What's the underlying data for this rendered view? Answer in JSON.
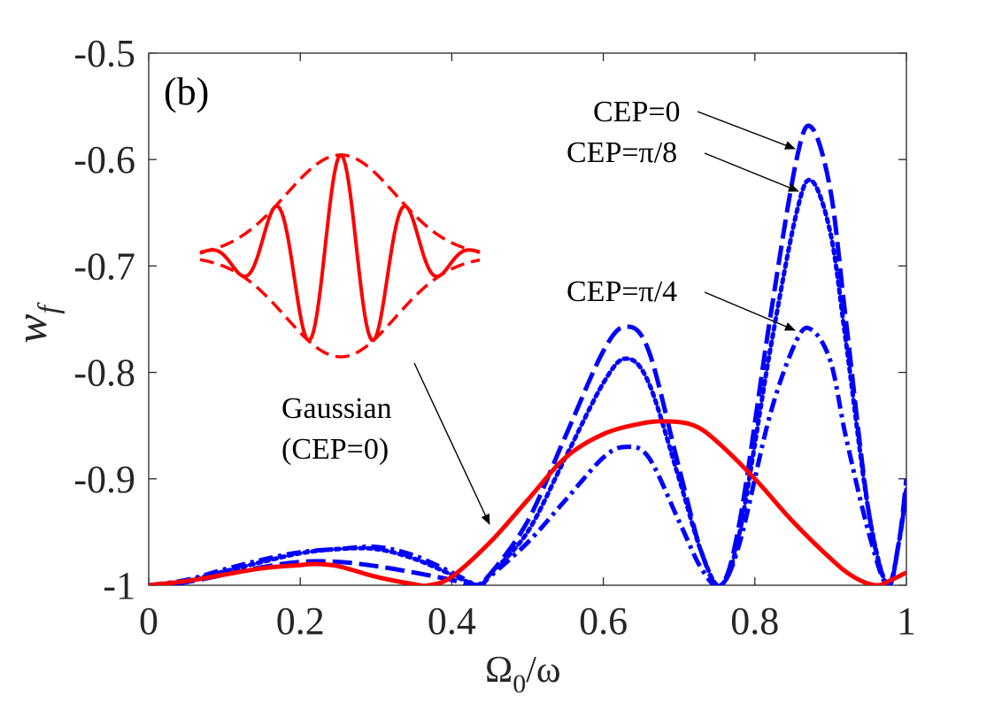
{
  "chart_data": {
    "type": "line",
    "panel_label": "(b)",
    "xlabel": {
      "main": "Ω",
      "sub": "0",
      "rest": "/ω"
    },
    "ylabel": {
      "main": "w",
      "sub": "f"
    },
    "xlim": [
      0,
      1
    ],
    "ylim": [
      -1,
      -0.5
    ],
    "xticks": [
      0,
      0.2,
      0.4,
      0.6,
      0.8,
      1
    ],
    "xtick_labels": [
      "0",
      "0.2",
      "0.4",
      "0.6",
      "0.8",
      "1"
    ],
    "yticks": [
      -1,
      -0.9,
      -0.8,
      -0.7,
      -0.6,
      -0.5
    ],
    "ytick_labels": [
      "-1",
      "-0.9",
      "-0.8",
      "-0.7",
      "-0.6",
      "-0.5"
    ],
    "series": [
      {
        "name": "CEP=0",
        "style": "dashed",
        "color": "#0000ff",
        "x": [
          0,
          0.05,
          0.1,
          0.15,
          0.2,
          0.25,
          0.3,
          0.35,
          0.4,
          0.43,
          0.45,
          0.5,
          0.55,
          0.6,
          0.63,
          0.66,
          0.7,
          0.73,
          0.755,
          0.78,
          0.82,
          0.855,
          0.875,
          0.9,
          0.92,
          0.95,
          0.975,
          0.99,
          1.0
        ],
        "y": [
          -1.0,
          -0.997,
          -0.99,
          -0.983,
          -0.978,
          -0.978,
          -0.982,
          -0.988,
          -0.995,
          -1.0,
          -0.99,
          -0.94,
          -0.86,
          -0.78,
          -0.757,
          -0.78,
          -0.89,
          -0.97,
          -1.0,
          -0.94,
          -0.75,
          -0.6,
          -0.57,
          -0.63,
          -0.75,
          -0.93,
          -1.0,
          -0.96,
          -0.9
        ]
      },
      {
        "name": "CEP=π/8",
        "style": "dotted",
        "color": "#0000ff",
        "x": [
          0,
          0.05,
          0.1,
          0.15,
          0.2,
          0.25,
          0.3,
          0.35,
          0.4,
          0.435,
          0.45,
          0.5,
          0.55,
          0.6,
          0.63,
          0.66,
          0.7,
          0.73,
          0.755,
          0.78,
          0.82,
          0.855,
          0.875,
          0.9,
          0.92,
          0.95,
          0.975,
          0.99,
          1.0
        ],
        "y": [
          -1.0,
          -0.996,
          -0.987,
          -0.978,
          -0.97,
          -0.966,
          -0.966,
          -0.975,
          -0.99,
          -1.0,
          -0.99,
          -0.95,
          -0.88,
          -0.81,
          -0.787,
          -0.81,
          -0.9,
          -0.97,
          -1.0,
          -0.95,
          -0.78,
          -0.65,
          -0.62,
          -0.67,
          -0.77,
          -0.93,
          -1.0,
          -0.96,
          -0.91
        ]
      },
      {
        "name": "CEP=π/4",
        "style": "dashdot",
        "color": "#0000ff",
        "x": [
          0,
          0.05,
          0.1,
          0.15,
          0.2,
          0.25,
          0.3,
          0.35,
          0.4,
          0.435,
          0.45,
          0.5,
          0.55,
          0.6,
          0.63,
          0.66,
          0.7,
          0.73,
          0.755,
          0.78,
          0.82,
          0.855,
          0.875,
          0.9,
          0.92,
          0.95,
          0.975,
          0.99,
          1.0
        ],
        "y": [
          -1.0,
          -0.995,
          -0.985,
          -0.976,
          -0.969,
          -0.966,
          -0.964,
          -0.972,
          -0.988,
          -1.0,
          -0.992,
          -0.96,
          -0.92,
          -0.88,
          -0.87,
          -0.88,
          -0.94,
          -0.985,
          -1.0,
          -0.96,
          -0.84,
          -0.77,
          -0.76,
          -0.79,
          -0.86,
          -0.95,
          -1.0,
          -0.96,
          -0.91
        ]
      },
      {
        "name": "Gaussian (CEP=0)",
        "style": "solid",
        "color": "#ff0000",
        "x": [
          0,
          0.05,
          0.1,
          0.15,
          0.2,
          0.22,
          0.25,
          0.3,
          0.35,
          0.37,
          0.4,
          0.45,
          0.5,
          0.55,
          0.6,
          0.65,
          0.685,
          0.72,
          0.75,
          0.8,
          0.85,
          0.9,
          0.93,
          0.96,
          0.98,
          1.0
        ],
        "y": [
          -1.0,
          -0.996,
          -0.99,
          -0.984,
          -0.981,
          -0.98,
          -0.982,
          -0.992,
          -0.999,
          -1.0,
          -0.992,
          -0.96,
          -0.92,
          -0.88,
          -0.858,
          -0.848,
          -0.846,
          -0.85,
          -0.865,
          -0.9,
          -0.94,
          -0.975,
          -0.992,
          -1.0,
          -0.995,
          -0.988
        ]
      }
    ],
    "annotations": [
      {
        "text": "CEP=0",
        "target_x": 0.855,
        "target_y": -0.59
      },
      {
        "text": "CEP=π/8",
        "target_x": 0.86,
        "target_y": -0.63
      },
      {
        "text": "CEP=π/4",
        "target_x": 0.855,
        "target_y": -0.765
      },
      {
        "text_lines": [
          "Gaussian",
          "(CEP=0)"
        ],
        "target_x": 0.445,
        "target_y": -0.96
      }
    ],
    "inset": {
      "description": "pulse waveform with gaussian envelope",
      "color": "#ff0000"
    }
  }
}
